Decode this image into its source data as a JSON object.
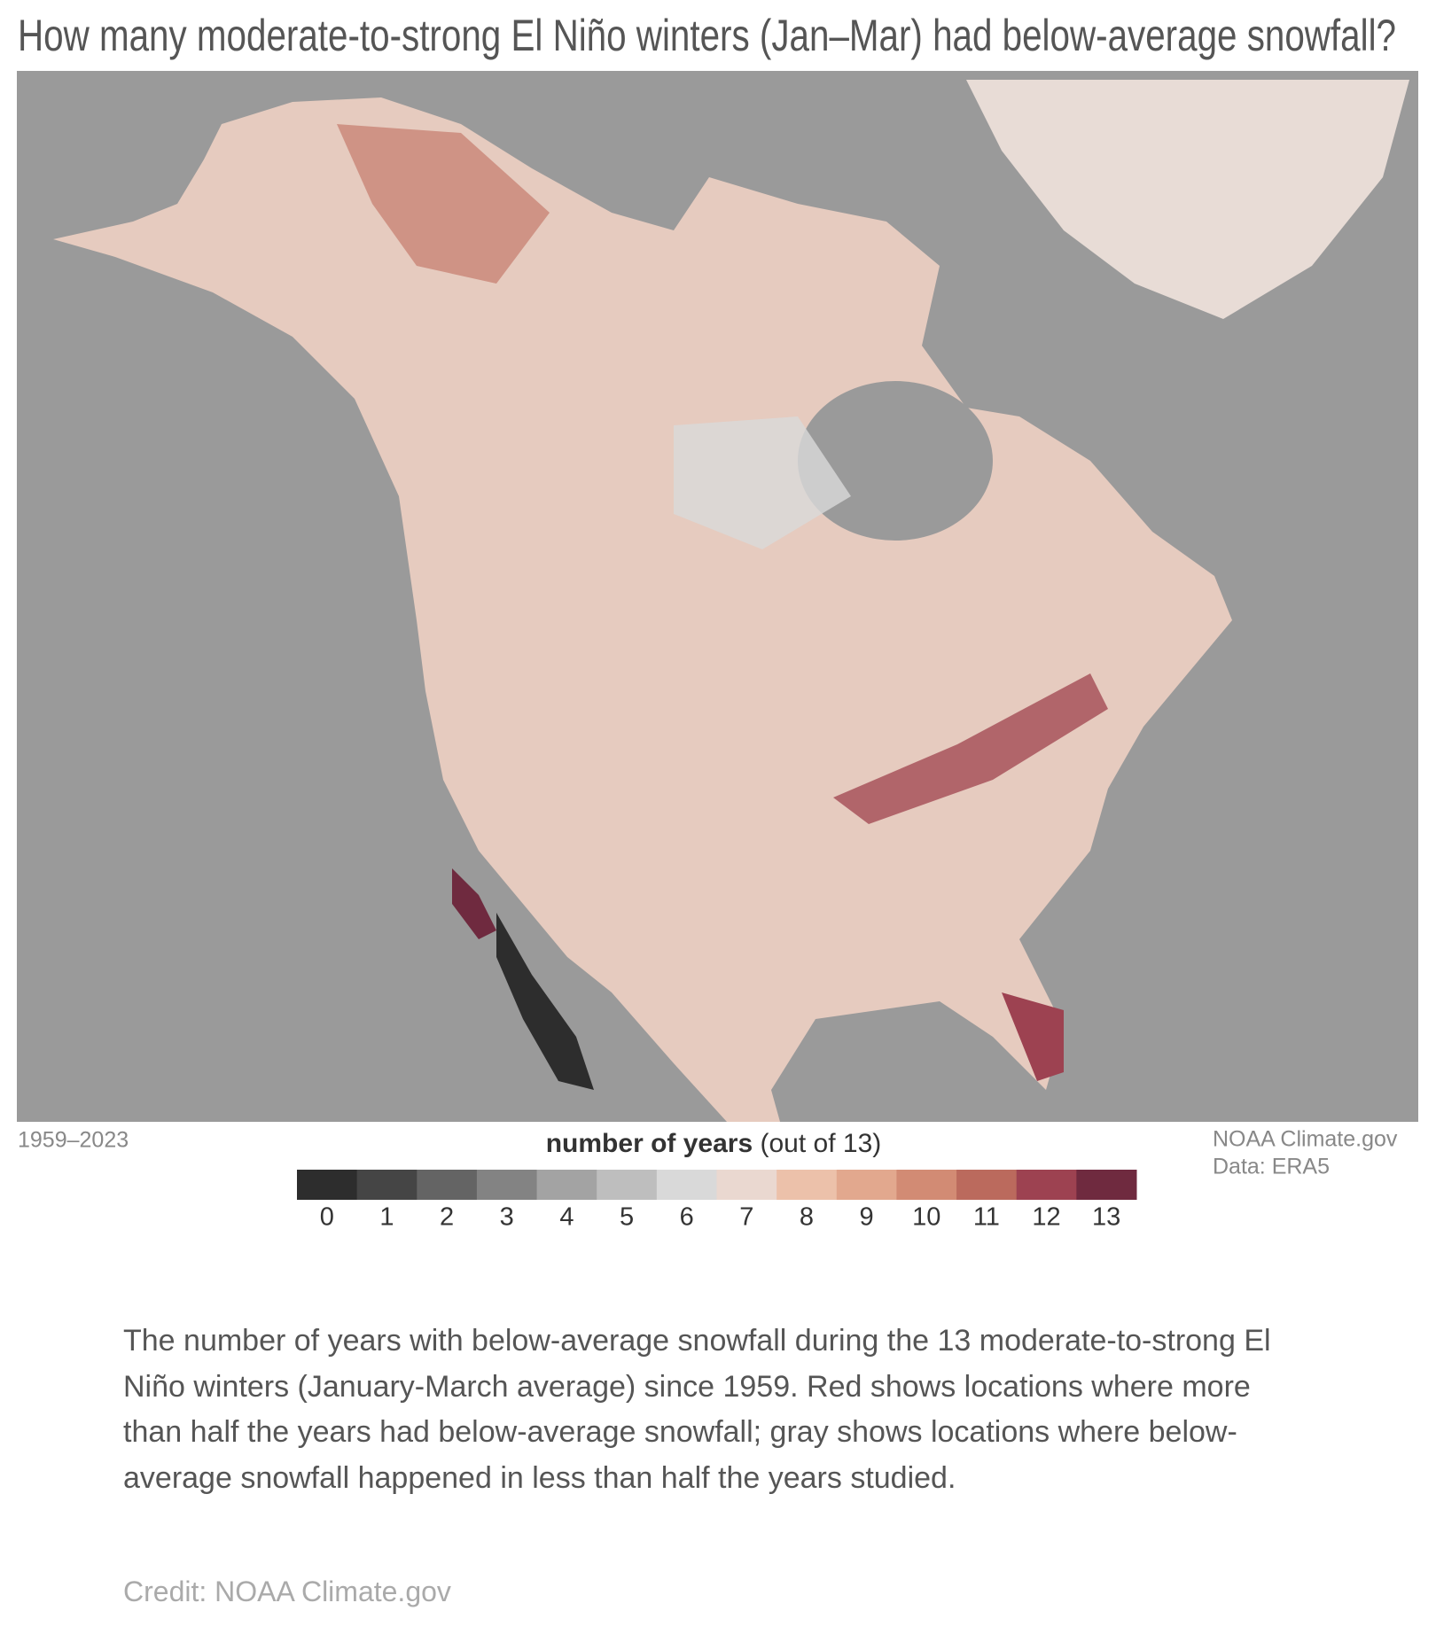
{
  "title": "How many moderate-to-strong El Niño winters (Jan–Mar) had below-average snowfall?",
  "period": "1959–2023",
  "legend": {
    "title_bold": "number of years",
    "title_rest": "(out of 13)",
    "ticks": [
      0,
      1,
      2,
      3,
      4,
      5,
      6,
      7,
      8,
      9,
      10,
      11,
      12,
      13
    ],
    "colors": [
      "#2d2d2d",
      "#454545",
      "#646464",
      "#838383",
      "#a3a3a3",
      "#bebebe",
      "#d9d9d9",
      "#ead8d0",
      "#ecc1aa",
      "#e2a88e",
      "#d28b74",
      "#bb6a5d",
      "#9d4251",
      "#6f2a3f"
    ]
  },
  "source": [
    "NOAA Climate.gov",
    "Data: ERA5"
  ],
  "caption": "The number of years with below-average snowfall during the 13 moderate-to-strong El Niño winters (January-March average) since 1959. Red shows locations where more than half the years had below-average snowfall; gray shows locations where below-average snowfall happened in less than half the years studied.",
  "credit": "Credit: NOAA Climate.gov"
}
